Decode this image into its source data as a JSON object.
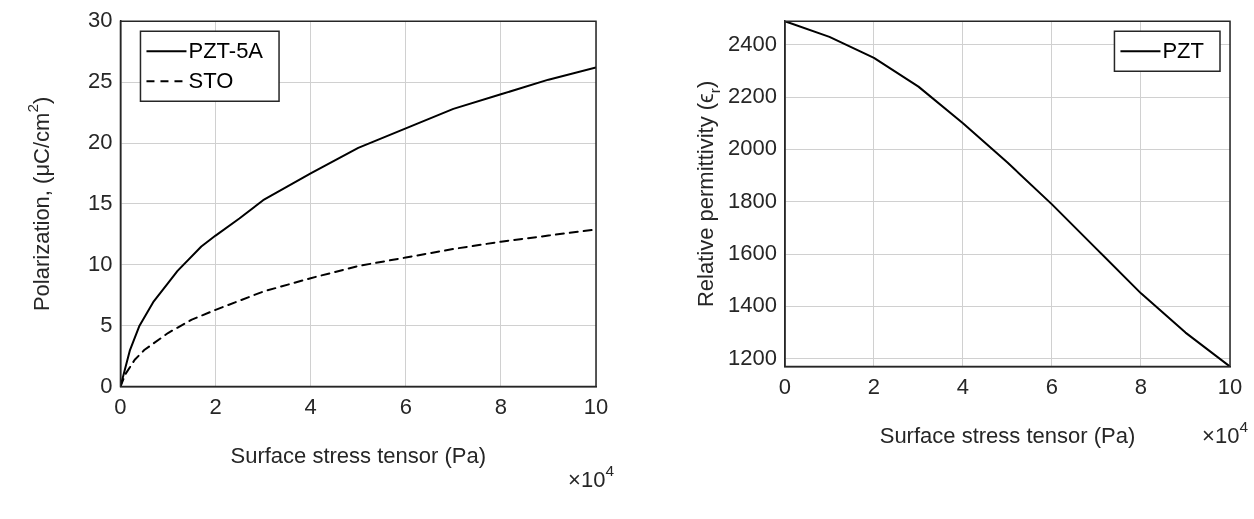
{
  "chart_data": [
    {
      "type": "line",
      "xlabel": "Surface stress tensor (Pa)",
      "ylabel": "Polarization, (μC/cm$^{2}$)",
      "annotations": [
        "×10$^{4}$"
      ],
      "xlim": [
        0,
        10
      ],
      "xticks": [
        0,
        2,
        4,
        6,
        8,
        10
      ],
      "ylim": [
        0,
        30
      ],
      "yticks": [
        0,
        5,
        10,
        15,
        20,
        25,
        30
      ],
      "grid": true,
      "legend": "top left",
      "marker": "none",
      "series": [
        {
          "name": "PZT-5A",
          "color": "#000000",
          "line_style": "solid",
          "x": [
            0,
            0.1,
            0.2,
            0.4,
            0.7,
            1,
            1.2,
            1.7,
            2,
            2.5,
            3,
            4,
            5,
            6,
            7,
            8,
            9,
            10
          ],
          "values": [
            0,
            1.5,
            3,
            5,
            7,
            8.5,
            9.5,
            11.5,
            12.4,
            13.8,
            15.3,
            17.5,
            19.6,
            21.2,
            22.8,
            24,
            25.2,
            26.2
          ]
        },
        {
          "name": "STO",
          "color": "#000000",
          "line_style": "dashed",
          "x": [
            0,
            0.1,
            0.3,
            0.5,
            1,
            1.5,
            2,
            3,
            4,
            5,
            6,
            7,
            8,
            9,
            10
          ],
          "values": [
            0,
            1,
            2.2,
            3,
            4.4,
            5.5,
            6.3,
            7.8,
            8.9,
            9.9,
            10.6,
            11.3,
            11.9,
            12.4,
            12.9
          ]
        }
      ]
    },
    {
      "type": "line",
      "xlabel": "Surface stress tensor (Pa)",
      "ylabel": "Relative permittivity (ϵ$_{r}$)",
      "annotations": [
        "×10$^{4}$"
      ],
      "xlim": [
        0,
        10
      ],
      "xticks": [
        0,
        2,
        4,
        6,
        8,
        10
      ],
      "ylim": [
        1170,
        2490
      ],
      "yticks": [
        1200,
        1400,
        1600,
        1800,
        2000,
        2200,
        2400
      ],
      "grid": true,
      "legend": "top right",
      "marker": "none",
      "series": [
        {
          "name": "PZT",
          "color": "#000000",
          "line_style": "solid",
          "x": [
            0,
            1,
            2,
            3,
            4,
            5,
            6,
            7,
            8,
            9,
            10
          ],
          "values": [
            2490,
            2430,
            2350,
            2240,
            2100,
            1950,
            1790,
            1620,
            1450,
            1300,
            1170
          ]
        }
      ]
    }
  ]
}
